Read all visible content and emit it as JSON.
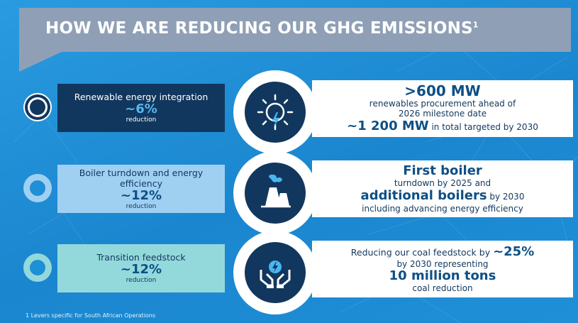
{
  "header": {
    "title": "HOW WE ARE REDUCING OUR GHG EMISSIONS",
    "superscript": "1"
  },
  "rows": [
    {
      "lever_label": "Renewable energy integration",
      "lever_pct": "~6%",
      "lever_sub": "reduction",
      "icon": "sun-lightning-icon",
      "panel": {
        "line1": ">600 MW",
        "line2": "renewables procurement ahead of",
        "line3": "2026 milestone date",
        "line4_big": "~1 200 MW",
        "line4_small": " in total targeted by 2030"
      }
    },
    {
      "lever_label": "Boiler turndown and energy efficiency",
      "lever_pct": "~12%",
      "lever_sub": "reduction",
      "icon": "cooling-tower-icon",
      "panel": {
        "line1": "First boiler",
        "line2": "turndown by 2025 and",
        "line3_big": "additional boilers",
        "line3_small": " by 2030",
        "line4": "including advancing energy efficiency"
      }
    },
    {
      "lever_label": "Transition feedstock",
      "lever_pct": "~12%",
      "lever_sub": "reduction",
      "icon": "hands-energy-icon",
      "panel": {
        "line1_small": "Reducing our coal feedstock by ",
        "line1_big": "~25%",
        "line2": "by 2030 representing",
        "line3": "10 million tons",
        "line4": "coal reduction"
      }
    }
  ],
  "footnote": "1  Levers specific for South African Operations",
  "colors": {
    "background": "#1f8fd6",
    "header": "#8fa0b6",
    "navy": "#12375e",
    "light_blue": "#9fd0f2",
    "teal": "#93d9db"
  }
}
